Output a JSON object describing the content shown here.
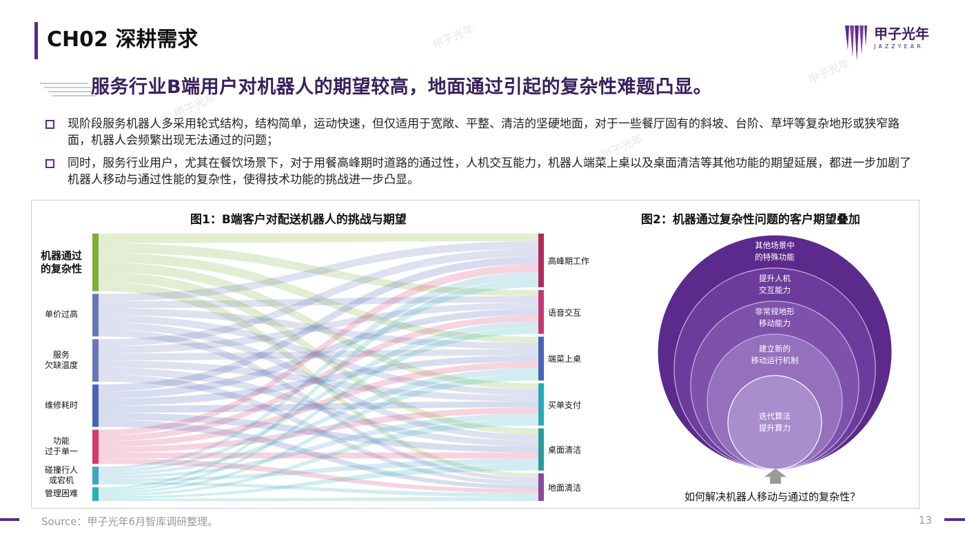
{
  "header": {
    "chapter": "CH02 深耕需求",
    "logo_cn": "甲子光年",
    "logo_en": "JAZZYEAR"
  },
  "headline": "服务行业B端用户对机器人的期望较高，地面通过引起的复杂性难题凸显。",
  "bullets": [
    "现阶段服务机器人多采用轮式结构，结构简单，运动快速，但仅适用于宽敞、平整、清洁的坚硬地面，对于一些餐厅固有的斜坡、台阶、草坪等复杂地形或狭窄路面，机器人会频繁出现无法通过的问题；",
    "同时，服务行业用户，尤其在餐饮场景下，对于用餐高峰期时道路的通过性，人机交互能力，机器人端菜上桌以及桌面清洁等其他功能的期望延展，都进一步加剧了机器人移动与通过性能的复杂性，使得技术功能的挑战进一步凸显。"
  ],
  "figure1": {
    "title": "图1：B端客户对配送机器人的挑战与期望",
    "sources": [
      {
        "label": "机器通过\n的复杂性",
        "color": "#7cae3a",
        "weight": 4.2,
        "big": true
      },
      {
        "label": "单价过高",
        "color": "#6a76b8",
        "weight": 3.1
      },
      {
        "label": "服务\n欠缺温度",
        "color": "#6a76b8",
        "weight": 3.1
      },
      {
        "label": "维修耗时",
        "color": "#4a64b4",
        "weight": 3.1
      },
      {
        "label": "功能\n过于单一",
        "color": "#d63a6c",
        "weight": 2.5
      },
      {
        "label": "碰撞行人\n或宕机",
        "color": "#3fa4c4",
        "weight": 1.3
      },
      {
        "label": "管理困难",
        "color": "#2ab0b8",
        "weight": 1.0
      }
    ],
    "targets": [
      {
        "label": "高峰期工作",
        "color": "#b02a5a",
        "weight": 3.3
      },
      {
        "label": "语音交互",
        "color": "#c43870",
        "weight": 2.7
      },
      {
        "label": "端菜上桌",
        "color": "#4a64b4",
        "weight": 2.7
      },
      {
        "label": "买单支付",
        "color": "#2aa8b8",
        "weight": 2.6
      },
      {
        "label": "桌面清洁",
        "color": "#2a9a9a",
        "weight": 2.6
      },
      {
        "label": "地面清洁",
        "color": "#8a4a9a",
        "weight": 1.7
      }
    ]
  },
  "figure2": {
    "title": "图2：机器通过复杂性问题的客户期望叠加",
    "layers": [
      "其他场景中\n的特殊功能",
      "提升人机\n交互能力",
      "非常规地形\n移动能力",
      "建立新的\n移动运行机制",
      "迭代算法\n提升算力"
    ],
    "question": "如何解决机器人移动与通过的复杂性？"
  },
  "footer": {
    "source": "Source：甲子光年6月智库调研整理。",
    "page": "13"
  },
  "colors": {
    "brand": "#5a2a8a",
    "headline": "#3a1f5c"
  }
}
